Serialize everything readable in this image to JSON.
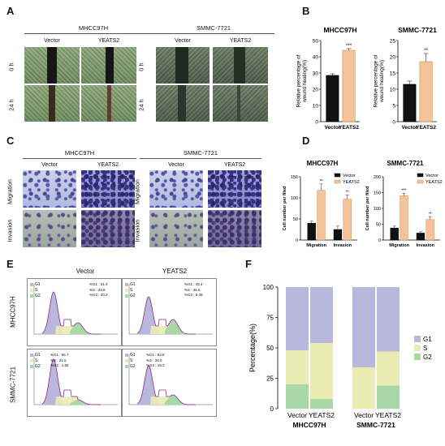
{
  "panels": {
    "A": {
      "label": "A",
      "cell_lines": [
        "MHCC97H",
        "SMMC-7721"
      ],
      "columns": [
        "Vector",
        "YEATS2"
      ],
      "rows": [
        "0 h",
        "24 h"
      ]
    },
    "B": {
      "label": "B"
    },
    "C": {
      "label": "C",
      "cell_lines": [
        "MHCC97H",
        "SMMC-7721"
      ],
      "columns": [
        "Vector",
        "YEATS2"
      ],
      "rows": [
        "Migration",
        "Invasion"
      ]
    },
    "D": {
      "label": "D"
    },
    "E": {
      "label": "E",
      "columns": [
        "Vector",
        "YEATS2"
      ],
      "rows": [
        "MHCC97H",
        "SMMC-7721"
      ],
      "legend": [
        "G1",
        "S",
        "G2"
      ],
      "stats": [
        [
          {
            "g1": "%G1 : 51.0",
            "s": "%S : 28.8",
            "g2": "%G2 : 20.2"
          },
          {
            "g1": "%G1 : 45.4",
            "s": "%S : 45.6",
            "g2": "%G2 : 8.38"
          }
        ],
        [
          {
            "g1": "%G1 : 65.7",
            "s": "%S : 31.5",
            "g2": "%G2 : 1.65"
          },
          {
            "g1": "%G1 : 52.8",
            "s": "%S : 28.0",
            "g2": "%G2 : 19.2"
          }
        ]
      ]
    },
    "F": {
      "label": "F"
    }
  },
  "colors": {
    "vector_bar": "#111111",
    "yeats2_bar": "#f3c39a",
    "g1": "#b9b7dc",
    "s": "#ebebb4",
    "g2": "#a8d8a8"
  },
  "chart_data": [
    {
      "id": "B1",
      "type": "bar",
      "title": "MHCC97H",
      "ylabel": "Relative percentage of wound healing(%)",
      "categories": [
        "Vector",
        "YEATS2"
      ],
      "values": [
        28.5,
        44
      ],
      "errors": [
        1,
        1
      ],
      "significance": [
        "",
        "***"
      ],
      "ylim": [
        0,
        50
      ],
      "yticks": [
        "0",
        "10",
        "20",
        "30",
        "40",
        "50"
      ]
    },
    {
      "id": "B2",
      "type": "bar",
      "title": "SMMC-7721",
      "ylabel": "Relative percentage of wound healing(%)",
      "categories": [
        "Vector",
        "YEATS2"
      ],
      "values": [
        11.5,
        18.5
      ],
      "errors": [
        1,
        2.5
      ],
      "significance": [
        "",
        "**"
      ],
      "ylim": [
        0,
        25
      ],
      "yticks": [
        "0",
        "5",
        "10",
        "15",
        "20",
        "25"
      ]
    },
    {
      "id": "D1",
      "type": "bar",
      "title": "MHCC97H",
      "ylabel": "Cell number per filed",
      "categories": [
        "Migration",
        "Invasion"
      ],
      "series": [
        {
          "name": "Vector",
          "values": [
            40,
            25
          ],
          "errors": [
            5,
            8
          ]
        },
        {
          "name": "YEATS2",
          "values": [
            118,
            97
          ],
          "errors": [
            15,
            10
          ]
        }
      ],
      "significance": [
        "**",
        "**"
      ],
      "ylim": [
        0,
        150
      ],
      "yticks": [
        "0",
        "50",
        "100",
        "150"
      ]
    },
    {
      "id": "D2",
      "type": "bar",
      "title": "SMMC-7721",
      "ylabel": "Cell number per filed",
      "categories": [
        "Migration",
        "Invasion"
      ],
      "series": [
        {
          "name": "Vector",
          "values": [
            38,
            22
          ],
          "errors": [
            6,
            4
          ]
        },
        {
          "name": "YEATS2",
          "values": [
            140,
            65
          ],
          "errors": [
            8,
            8
          ]
        }
      ],
      "significance": [
        "***",
        "**"
      ],
      "ylim": [
        0,
        200
      ],
      "yticks": [
        "0",
        "50",
        "100",
        "150",
        "200"
      ]
    },
    {
      "id": "F",
      "type": "bar",
      "stacked": true,
      "ylabel": "Percentage(%)",
      "groups": [
        "MHCC97H",
        "SMMC-7721"
      ],
      "categories": [
        "Vector",
        "YEATS2",
        "Vector",
        "YEATS2"
      ],
      "series": [
        {
          "name": "G2",
          "values": [
            20,
            8,
            0,
            19
          ]
        },
        {
          "name": "S",
          "values": [
            28,
            46,
            34,
            28
          ]
        },
        {
          "name": "G1",
          "values": [
            52,
            46,
            66,
            53
          ]
        }
      ],
      "ylim": [
        0,
        100
      ],
      "yticks": [
        "0",
        "25",
        "50",
        "75",
        "100"
      ],
      "legend": [
        "G1",
        "S",
        "G2"
      ]
    }
  ]
}
